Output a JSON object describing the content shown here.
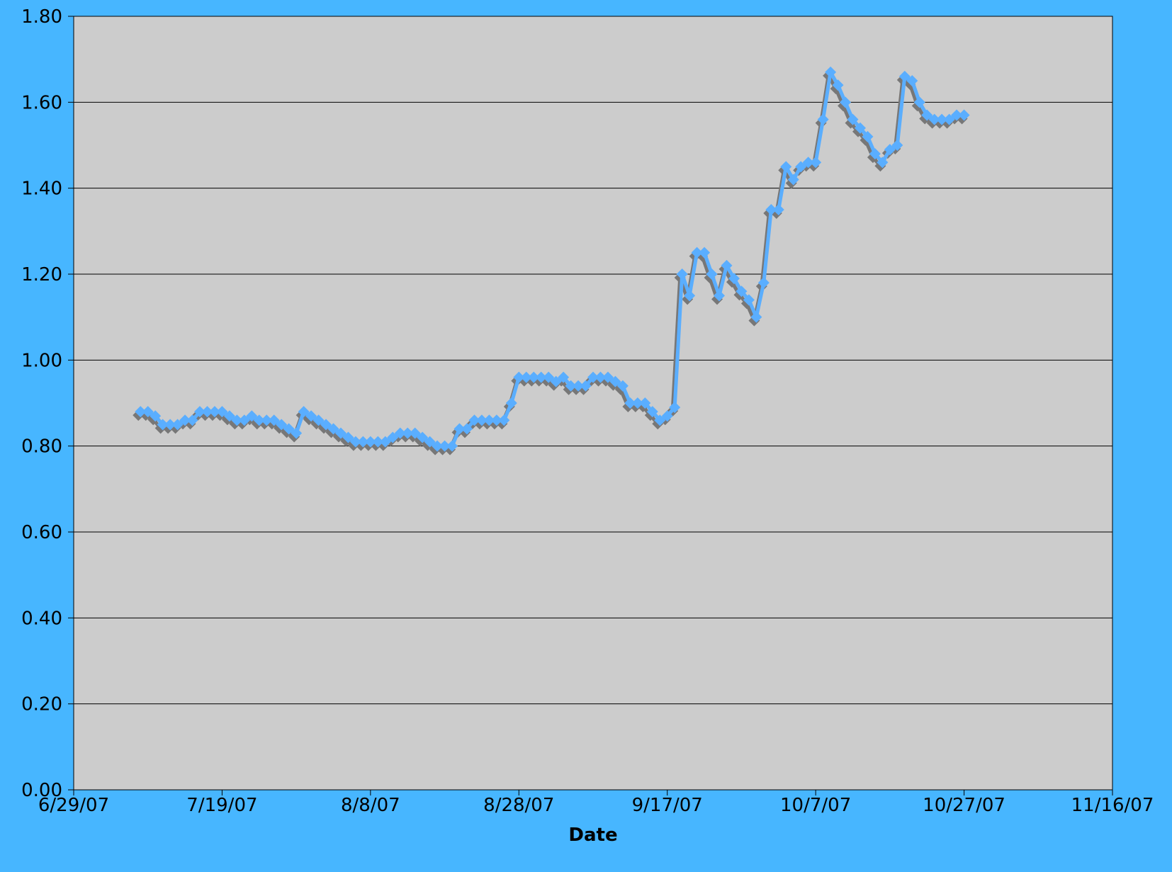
{
  "chart_data": {
    "type": "line",
    "x_label": "Date",
    "xlim": [
      "6/29/07",
      "11/16/07"
    ],
    "xticks": [
      "6/29/07",
      "7/19/07",
      "8/8/07",
      "8/28/07",
      "9/17/07",
      "10/7/07",
      "10/27/07",
      "11/16/07"
    ],
    "ylim": [
      0,
      1.8
    ],
    "yticks": [
      {
        "value": 0,
        "label": "0.00"
      },
      {
        "value": 0.2,
        "label": "0.20"
      },
      {
        "value": 0.4,
        "label": "0.40"
      },
      {
        "value": 0.6,
        "label": "0.60"
      },
      {
        "value": 0.8,
        "label": "0.80"
      },
      {
        "value": 1,
        "label": "1.00"
      },
      {
        "value": 1.2,
        "label": "1.20"
      },
      {
        "value": 1.4,
        "label": "1.40"
      },
      {
        "value": 1.6,
        "label": "1.60"
      },
      {
        "value": 1.8,
        "label": "1.80"
      }
    ],
    "grid": true,
    "plot_background": "#cccccc",
    "x": [
      "7/8/07",
      "7/9/07",
      "7/10/07",
      "7/11/07",
      "7/12/07",
      "7/13/07",
      "7/14/07",
      "7/15/07",
      "7/16/07",
      "7/17/07",
      "7/18/07",
      "7/19/07",
      "7/20/07",
      "7/21/07",
      "7/22/07",
      "7/23/07",
      "7/24/07",
      "7/25/07",
      "7/26/07",
      "7/27/07",
      "7/28/07",
      "7/29/07",
      "7/30/07",
      "7/31/07",
      "8/1/07",
      "8/2/07",
      "8/3/07",
      "8/4/07",
      "8/5/07",
      "8/6/07",
      "8/7/07",
      "8/8/07",
      "8/9/07",
      "8/10/07",
      "8/11/07",
      "8/12/07",
      "8/13/07",
      "8/14/07",
      "8/15/07",
      "8/16/07",
      "8/17/07",
      "8/18/07",
      "8/19/07",
      "8/20/07",
      "8/21/07",
      "8/22/07",
      "8/23/07",
      "8/24/07",
      "8/25/07",
      "8/26/07",
      "8/27/07",
      "8/28/07",
      "8/29/07",
      "8/30/07",
      "8/31/07",
      "9/1/07",
      "9/2/07",
      "9/3/07",
      "9/4/07",
      "9/5/07",
      "9/6/07",
      "9/7/07",
      "9/8/07",
      "9/9/07",
      "9/10/07",
      "9/11/07",
      "9/12/07",
      "9/13/07",
      "9/14/07",
      "9/15/07",
      "9/16/07",
      "9/17/07",
      "9/18/07",
      "9/19/07",
      "9/20/07",
      "9/21/07",
      "9/22/07",
      "9/23/07",
      "9/24/07",
      "9/25/07",
      "9/26/07",
      "9/27/07",
      "9/28/07",
      "9/29/07",
      "9/30/07",
      "10/1/07",
      "10/2/07",
      "10/3/07",
      "10/4/07",
      "10/5/07",
      "10/6/07",
      "10/7/07",
      "10/8/07",
      "10/9/07",
      "10/10/07",
      "10/11/07",
      "10/12/07",
      "10/13/07",
      "10/14/07",
      "10/15/07",
      "10/16/07",
      "10/17/07",
      "10/18/07",
      "10/19/07",
      "10/20/07",
      "10/21/07",
      "10/22/07",
      "10/23/07",
      "10/24/07",
      "10/25/07",
      "10/26/07",
      "10/27/07"
    ],
    "series": [
      {
        "color": "#5aaeff",
        "values": [
          0.88,
          0.88,
          0.87,
          0.85,
          0.85,
          0.85,
          0.86,
          0.86,
          0.88,
          0.88,
          0.88,
          0.88,
          0.87,
          0.86,
          0.86,
          0.87,
          0.86,
          0.86,
          0.86,
          0.85,
          0.84,
          0.83,
          0.88,
          0.87,
          0.86,
          0.85,
          0.84,
          0.83,
          0.82,
          0.81,
          0.81,
          0.81,
          0.81,
          0.81,
          0.82,
          0.83,
          0.83,
          0.83,
          0.82,
          0.81,
          0.8,
          0.8,
          0.8,
          0.84,
          0.84,
          0.86,
          0.86,
          0.86,
          0.86,
          0.86,
          0.9,
          0.96,
          0.96,
          0.96,
          0.96,
          0.96,
          0.95,
          0.96,
          0.94,
          0.94,
          0.94,
          0.96,
          0.96,
          0.96,
          0.95,
          0.94,
          0.9,
          0.9,
          0.9,
          0.88,
          0.86,
          0.87,
          0.89,
          1.2,
          1.15,
          1.25,
          1.25,
          1.2,
          1.15,
          1.22,
          1.19,
          1.16,
          1.14,
          1.1,
          1.18,
          1.35,
          1.35,
          1.45,
          1.42,
          1.45,
          1.46,
          1.46,
          1.56,
          1.67,
          1.64,
          1.6,
          1.56,
          1.54,
          1.52,
          1.48,
          1.46,
          1.49,
          1.5,
          1.66,
          1.65,
          1.6,
          1.57,
          1.56,
          1.56,
          1.56,
          1.57,
          1.57
        ]
      }
    ]
  }
}
